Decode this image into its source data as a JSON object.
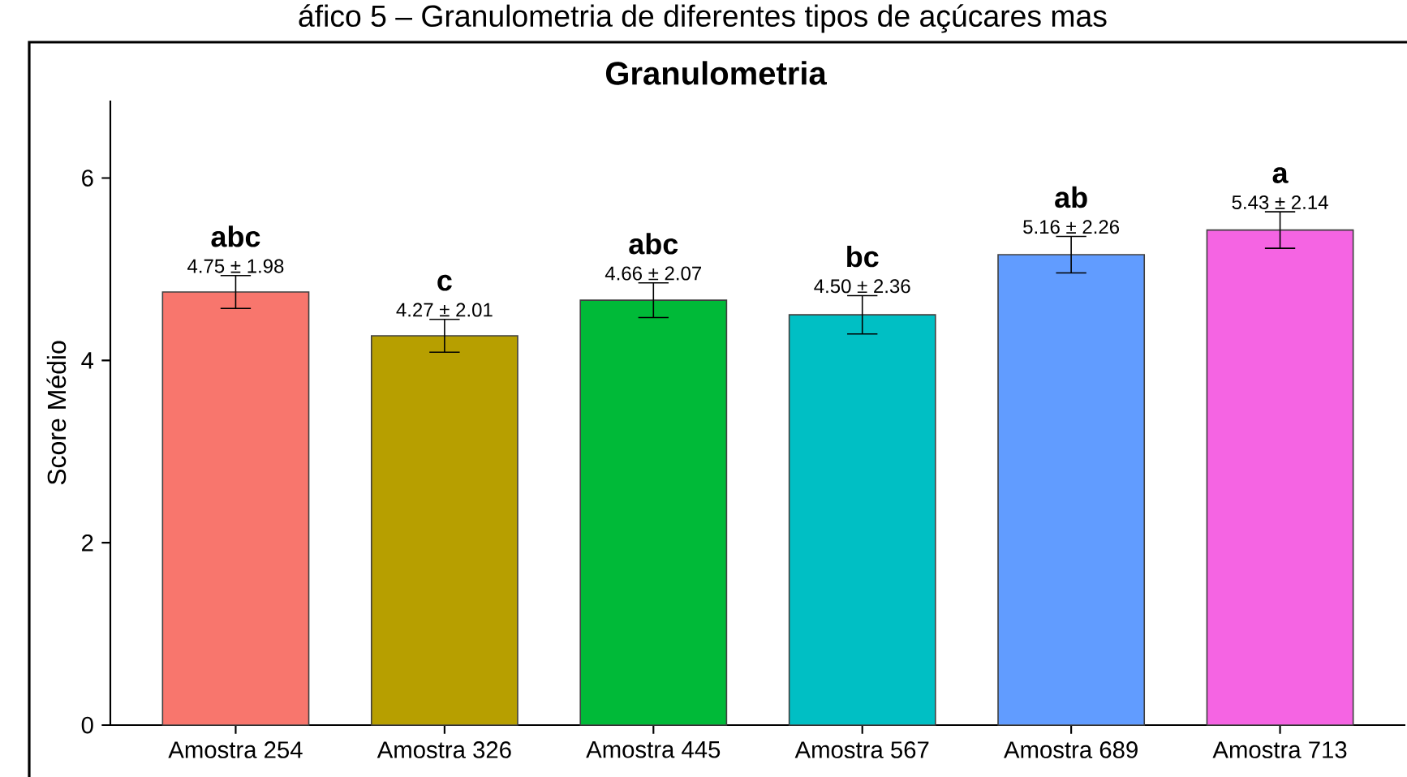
{
  "chart_data": {
    "type": "bar",
    "title": "Granulometria",
    "ylabel": "Score Médio",
    "categories": [
      "Amostra 254",
      "Amostra 326",
      "Amostra 445",
      "Amostra 567",
      "Amostra 689",
      "Amostra 713"
    ],
    "values": [
      4.75,
      4.27,
      4.66,
      4.5,
      5.16,
      5.43
    ],
    "errors": [
      0.18,
      0.18,
      0.19,
      0.21,
      0.2,
      0.2
    ],
    "value_labels": [
      "4.75 ± 1.98",
      "4.27 ± 2.01",
      "4.66 ± 2.07",
      "4.50 ± 2.36",
      "5.16 ± 2.26",
      "5.43 ± 2.14"
    ],
    "colors": [
      "#f8766d",
      "#b79f00",
      "#00ba38",
      "#00bfc4",
      "#619cff",
      "#f564e3"
    ],
    "ylim": [
      0,
      6.85
    ],
    "yticks": [
      0,
      2,
      4,
      6
    ],
    "grid": false,
    "annotations": [
      "áfico 5 – Granulometria de diferentes tipos de açúcares mas",
      {
        "text": "abc",
        "x": "Amostra 254",
        "y": 4.93
      },
      {
        "text": "c",
        "x": "Amostra 326",
        "y": 4.45
      },
      {
        "text": "abc",
        "x": "Amostra 445",
        "y": 4.85
      },
      {
        "text": "bc",
        "x": "Amostra 567",
        "y": 4.71
      },
      {
        "text": "ab",
        "x": "Amostra 689",
        "y": 5.36
      },
      {
        "text": "a",
        "x": "Amostra 713",
        "y": 5.63
      }
    ]
  }
}
